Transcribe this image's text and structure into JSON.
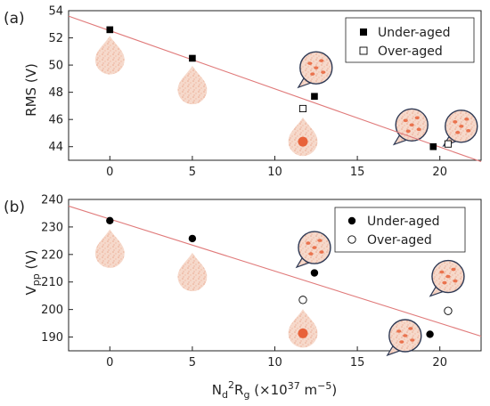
{
  "chart_data": [
    {
      "panel_label": "(a)",
      "type": "scatter",
      "ylabel": "RMS (V)",
      "xlabel": "",
      "xlim": [
        -2.5,
        22.5
      ],
      "ylim": [
        43,
        54
      ],
      "x_ticks": [
        0,
        5,
        10,
        15,
        20
      ],
      "y_ticks": [
        44,
        46,
        48,
        50,
        52,
        54
      ],
      "legend": "top-right",
      "series": [
        {
          "name": "Under-aged",
          "marker": "filled-square",
          "x": [
            0,
            5,
            12.4,
            19.6
          ],
          "y": [
            52.6,
            50.5,
            47.7,
            44.0
          ]
        },
        {
          "name": "Over-aged",
          "marker": "open-square",
          "x": [
            11.7,
            20.5
          ],
          "y": [
            46.8,
            44.2
          ]
        }
      ],
      "fit_line": {
        "color": "#e07a7a",
        "points": [
          [
            -2.5,
            53.6
          ],
          [
            22.5,
            42.9
          ]
        ]
      },
      "insets": [
        {
          "x": 0,
          "y": 50.5,
          "shape": "drop",
          "style": "fine"
        },
        {
          "x": 5,
          "y": 48.3,
          "shape": "drop",
          "style": "fine"
        },
        {
          "x": 11.7,
          "y": 44.5,
          "shape": "drop",
          "style": "central-blob"
        },
        {
          "x": 12.5,
          "y": 49.8,
          "shape": "bubble",
          "style": "spots"
        },
        {
          "x": 18.3,
          "y": 45.6,
          "shape": "bubble",
          "style": "spots"
        },
        {
          "x": 21.3,
          "y": 45.5,
          "shape": "bubble",
          "style": "spots"
        }
      ]
    },
    {
      "panel_label": "(b)",
      "type": "scatter",
      "ylabel_main": "V",
      "ylabel_sub": "pp",
      "ylabel_unit": " (V)",
      "xlabel_parts": [
        "N",
        "d",
        "2",
        "R",
        "g",
        " (×10",
        "37",
        " m",
        "−5",
        ")"
      ],
      "xlim": [
        -2.5,
        22.5
      ],
      "ylim": [
        185,
        240
      ],
      "x_ticks": [
        0,
        5,
        10,
        15,
        20
      ],
      "y_ticks": [
        190,
        200,
        210,
        220,
        230,
        240
      ],
      "legend": "top-right",
      "series": [
        {
          "name": "Under-aged",
          "marker": "filled-circle",
          "x": [
            0,
            5,
            12.4,
            19.4
          ],
          "y": [
            232.3,
            225.8,
            213.3,
            191.0
          ]
        },
        {
          "name": "Over-aged",
          "marker": "open-circle",
          "x": [
            11.7,
            20.5
          ],
          "y": [
            203.5,
            199.5
          ]
        }
      ],
      "fit_line": {
        "color": "#e07a7a",
        "points": [
          [
            -2.5,
            237.6
          ],
          [
            22.5,
            190.3
          ]
        ]
      },
      "insets": [
        {
          "x": 0,
          "y": 221.0,
          "shape": "drop",
          "style": "fine"
        },
        {
          "x": 5,
          "y": 212.5,
          "shape": "drop",
          "style": "fine"
        },
        {
          "x": 11.7,
          "y": 192.0,
          "shape": "drop",
          "style": "central-blob"
        },
        {
          "x": 12.4,
          "y": 222.5,
          "shape": "bubble",
          "style": "spots"
        },
        {
          "x": 17.9,
          "y": 190.5,
          "shape": "bubble",
          "style": "spots"
        },
        {
          "x": 20.5,
          "y": 212.0,
          "shape": "bubble",
          "style": "spots"
        }
      ]
    }
  ],
  "colors": {
    "fit_line": "#e07a7a",
    "inset_fill": "#f6d7c8",
    "inset_border": "#2f3a55",
    "inset_spot": "#e8623a",
    "marker": "#000000"
  }
}
